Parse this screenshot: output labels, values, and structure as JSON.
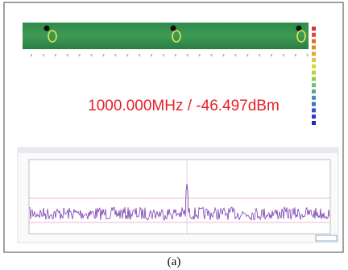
{
  "readout": "1000.000MHz / -46.497dBm",
  "caption": "(a)"
}
